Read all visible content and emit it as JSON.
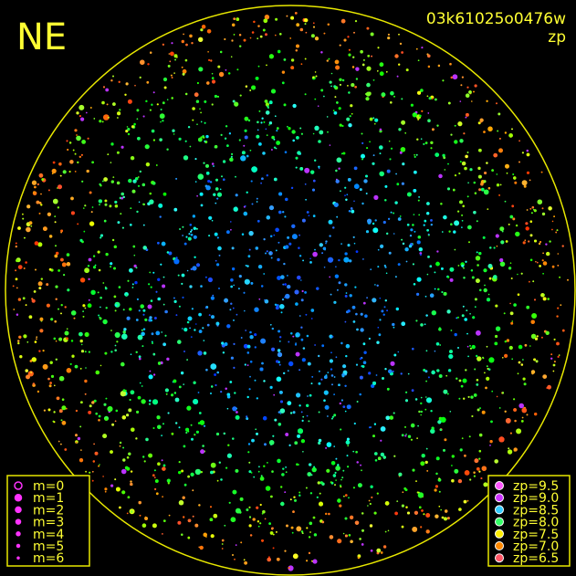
{
  "header": {
    "title": "NE",
    "frame_id": "03k61025o0476w",
    "mode": "zp"
  },
  "legend_m": {
    "items": [
      "m=0",
      "m=1",
      "m=2",
      "m=3",
      "m=4",
      "m=5",
      "m=6"
    ]
  },
  "legend_zp": {
    "items": [
      {
        "label": "zp=9.5",
        "color": "#ff55ff"
      },
      {
        "label": "zp=9.0",
        "color": "#cc33ff"
      },
      {
        "label": "zp=8.5",
        "color": "#33ccff"
      },
      {
        "label": "zp=8.0",
        "color": "#33ff66"
      },
      {
        "label": "zp=7.5",
        "color": "#ffee00"
      },
      {
        "label": "zp=7.0",
        "color": "#ff8800"
      },
      {
        "label": "zp=6.5",
        "color": "#ff5566"
      }
    ]
  }
}
